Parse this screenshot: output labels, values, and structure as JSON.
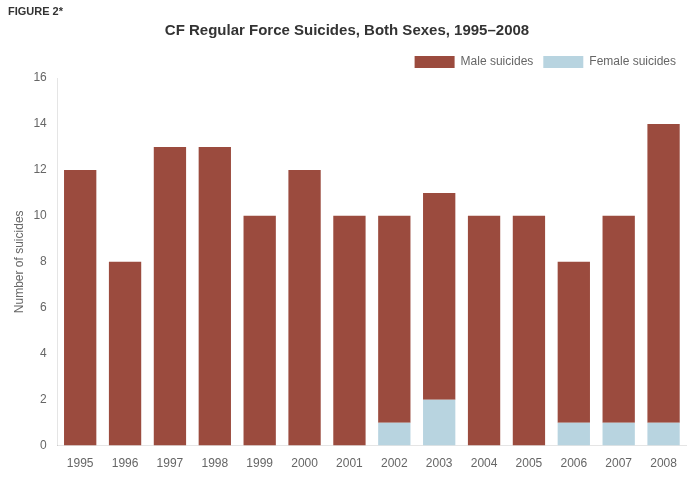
{
  "chart_data": {
    "type": "bar",
    "title": "CF Regular Force Suicides, Both Sexes, 1995–2008",
    "annotations": [
      "FIGURE 2*"
    ],
    "ylabel": "Number of suicides",
    "categories": [
      "1995",
      "1996",
      "1997",
      "1998",
      "1999",
      "2000",
      "2001",
      "2002",
      "2003",
      "2004",
      "2005",
      "2006",
      "2007",
      "2008"
    ],
    "series": [
      {
        "name": "Female suicides",
        "color": "#B8D4E0",
        "values": [
          0,
          0,
          0,
          0,
          0,
          0,
          0,
          1,
          2,
          0,
          0,
          1,
          1,
          1
        ]
      },
      {
        "name": "Male suicides",
        "color": "#9B4B3E",
        "values": [
          12,
          8,
          13,
          13,
          10,
          12,
          10,
          9,
          9,
          10,
          10,
          7,
          9,
          13
        ]
      }
    ],
    "stacked": true,
    "ylim": [
      0,
      16
    ],
    "yticks": [
      0,
      2,
      4,
      6,
      8,
      10,
      12,
      14,
      16
    ],
    "grid": false,
    "legend": "upper right"
  }
}
